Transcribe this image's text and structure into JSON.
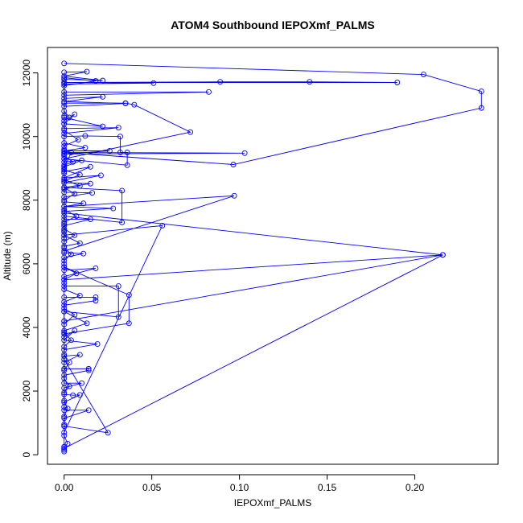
{
  "chart_data": {
    "type": "line",
    "title": "ATOM4 Southbound IEPOXmf_PALMS",
    "xlabel": "IEPOXmf_PALMS",
    "ylabel": "Altitude (m)",
    "xlim": [
      -0.0095,
      0.2475
    ],
    "ylim": [
      -300,
      12800
    ],
    "x_ticks": [
      0.0,
      0.05,
      0.1,
      0.15,
      0.2
    ],
    "x_tick_labels": [
      "0.00",
      "0.05",
      "0.10",
      "0.15",
      "0.20"
    ],
    "y_ticks": [
      0,
      2000,
      4000,
      6000,
      8000,
      10000,
      12000
    ],
    "y_tick_labels": [
      "0",
      "2000",
      "4000",
      "6000",
      "8000",
      "10000",
      "12000"
    ],
    "series_color": "#0000ff",
    "marker": "open-circle",
    "grid": false,
    "legend": "none",
    "series": [
      {
        "points": [
          [
            0.0,
            12300
          ],
          [
            0.205,
            11950
          ],
          [
            0.238,
            11420
          ],
          [
            0.238,
            10900
          ],
          [
            0.0965,
            9120
          ],
          [
            0.0,
            9500
          ],
          [
            0.103,
            9480
          ],
          [
            0.0,
            9450
          ],
          [
            0.0,
            9600
          ],
          [
            0.0,
            11700
          ],
          [
            0.19,
            11700
          ],
          [
            0.14,
            11720
          ],
          [
            0.089,
            11720
          ],
          [
            0.0,
            11700
          ],
          [
            0.051,
            11680
          ],
          [
            0.0,
            11650
          ],
          [
            0.0,
            11400
          ],
          [
            0.0825,
            11400
          ],
          [
            0.0,
            11300
          ],
          [
            0.0,
            11050
          ],
          [
            0.035,
            11050
          ],
          [
            0.04,
            11000
          ],
          [
            0.072,
            10140
          ],
          [
            0.0,
            9300
          ],
          [
            0.0,
            7800
          ],
          [
            0.097,
            8140
          ],
          [
            0.0,
            6400
          ],
          [
            0.0,
            7600
          ],
          [
            0.216,
            6280
          ],
          [
            0.0,
            5500
          ],
          [
            0.0,
            4200
          ],
          [
            0.216,
            6280
          ],
          [
            0.0,
            200
          ],
          [
            0.0,
            700
          ],
          [
            0.056,
            7200
          ],
          [
            0.0,
            6900
          ],
          [
            0.0,
            5900
          ],
          [
            0.037,
            5020
          ],
          [
            0.037,
            4130
          ],
          [
            0.0,
            3800
          ],
          [
            0.0,
            3000
          ],
          [
            0.025,
            690
          ],
          [
            0.0,
            900
          ],
          [
            0.0,
            1500
          ],
          [
            0.0,
            9000
          ],
          [
            0.004,
            9500
          ],
          [
            0.0,
            9550
          ]
        ]
      },
      {
        "points": [
          [
            0.0,
            12020
          ],
          [
            0.013,
            12040
          ],
          [
            0.0,
            11900
          ],
          [
            0.022,
            11760
          ],
          [
            0.0,
            11800
          ],
          [
            0.0,
            11600
          ],
          [
            0.018,
            11750
          ],
          [
            0.0,
            11850
          ],
          [
            0.0,
            11200
          ],
          [
            0.022,
            11250
          ],
          [
            0.0,
            11100
          ],
          [
            0.035,
            11040
          ],
          [
            0.0,
            10950
          ],
          [
            0.0,
            10650
          ],
          [
            0.0,
            10600
          ],
          [
            0.022,
            10320
          ],
          [
            0.0,
            10400
          ],
          [
            0.0,
            10250
          ],
          [
            0.031,
            10280
          ],
          [
            0.0,
            10100
          ],
          [
            0.0,
            10000
          ],
          [
            0.012,
            10020
          ],
          [
            0.032,
            10000
          ],
          [
            0.032,
            9500
          ],
          [
            0.036,
            9500
          ],
          [
            0.036,
            9100
          ],
          [
            0.0,
            9300
          ],
          [
            0.0,
            8900
          ],
          [
            0.015,
            9050
          ],
          [
            0.0,
            8700
          ],
          [
            0.021,
            8780
          ],
          [
            0.0,
            8550
          ],
          [
            0.015,
            8520
          ],
          [
            0.0,
            8400
          ],
          [
            0.033,
            8300
          ],
          [
            0.033,
            7300
          ],
          [
            0.0,
            7500
          ],
          [
            0.0,
            7250
          ],
          [
            0.0,
            7000
          ],
          [
            0.0,
            6800
          ]
        ]
      },
      {
        "points": [
          [
            0.0,
            9800
          ],
          [
            0.012,
            9650
          ],
          [
            0.0,
            9550
          ],
          [
            0.026,
            9550
          ],
          [
            0.0,
            9450
          ],
          [
            0.0,
            9200
          ],
          [
            0.01,
            9250
          ],
          [
            0.0,
            9050
          ],
          [
            0.0,
            8850
          ],
          [
            0.0,
            8650
          ],
          [
            0.009,
            8450
          ],
          [
            0.0,
            8350
          ],
          [
            0.0,
            8250
          ],
          [
            0.016,
            8230
          ],
          [
            0.0,
            8100
          ],
          [
            0.0,
            7950
          ],
          [
            0.011,
            7900
          ],
          [
            0.0,
            7800
          ],
          [
            0.028,
            7740
          ],
          [
            0.0,
            7650
          ],
          [
            0.0,
            7400
          ],
          [
            0.015,
            7400
          ],
          [
            0.0,
            7200
          ],
          [
            0.0,
            7050
          ],
          [
            0.0,
            6900
          ],
          [
            0.009,
            6650
          ],
          [
            0.0,
            6550
          ],
          [
            0.0,
            6350
          ],
          [
            0.011,
            6320
          ],
          [
            0.0,
            6200
          ],
          [
            0.0,
            6000
          ],
          [
            0.0,
            5800
          ],
          [
            0.018,
            5860
          ],
          [
            0.0,
            5600
          ],
          [
            0.0,
            5400
          ],
          [
            0.0,
            5300
          ],
          [
            0.031,
            5300
          ],
          [
            0.031,
            4330
          ],
          [
            0.0,
            4500
          ],
          [
            0.0,
            4200
          ]
        ]
      },
      {
        "points": [
          [
            0.0,
            4950
          ],
          [
            0.018,
            4950
          ],
          [
            0.018,
            4840
          ],
          [
            0.0,
            4700
          ],
          [
            0.0,
            4500
          ],
          [
            0.013,
            4130
          ],
          [
            0.0,
            3900
          ],
          [
            0.0,
            3700
          ],
          [
            0.006,
            3900
          ],
          [
            0.0,
            3600
          ],
          [
            0.019,
            3480
          ],
          [
            0.0,
            3300
          ],
          [
            0.0,
            3100
          ],
          [
            0.009,
            3140
          ],
          [
            0.0,
            2900
          ],
          [
            0.0,
            2700
          ],
          [
            0.014,
            2700
          ],
          [
            0.014,
            2650
          ],
          [
            0.0,
            2500
          ],
          [
            0.0,
            2250
          ],
          [
            0.01,
            2250
          ],
          [
            0.0,
            2100
          ],
          [
            0.0,
            1900
          ],
          [
            0.005,
            1870
          ],
          [
            0.009,
            1880
          ],
          [
            0.0,
            1650
          ],
          [
            0.0,
            1400
          ],
          [
            0.014,
            1400
          ],
          [
            0.0,
            1150
          ],
          [
            0.0,
            900
          ],
          [
            0.0,
            600
          ],
          [
            0.002,
            350
          ],
          [
            0.0,
            250
          ],
          [
            0.0,
            150
          ],
          [
            0.0,
            100
          ]
        ]
      },
      {
        "points": [
          [
            0.0,
            10800
          ],
          [
            0.003,
            10600
          ],
          [
            0.0,
            10500
          ],
          [
            0.006,
            10700
          ],
          [
            0.0,
            10400
          ],
          [
            0.0,
            10200
          ],
          [
            0.008,
            9900
          ],
          [
            0.0,
            9700
          ],
          [
            0.0,
            9400
          ],
          [
            0.005,
            9200
          ],
          [
            0.0,
            9100
          ],
          [
            0.0,
            8950
          ],
          [
            0.009,
            8800
          ],
          [
            0.0,
            8600
          ],
          [
            0.0,
            8400
          ],
          [
            0.006,
            8200
          ],
          [
            0.0,
            8000
          ],
          [
            0.0,
            7700
          ],
          [
            0.007,
            7500
          ],
          [
            0.0,
            7300
          ],
          [
            0.0,
            7100
          ],
          [
            0.006,
            6900
          ],
          [
            0.0,
            6700
          ],
          [
            0.0,
            6500
          ],
          [
            0.004,
            6300
          ],
          [
            0.0,
            6100
          ],
          [
            0.0,
            5900
          ],
          [
            0.007,
            5700
          ],
          [
            0.0,
            5500
          ],
          [
            0.0,
            5200
          ],
          [
            0.009,
            5000
          ],
          [
            0.0,
            4800
          ],
          [
            0.0,
            4600
          ],
          [
            0.006,
            4400
          ],
          [
            0.0,
            4100
          ],
          [
            0.0,
            3850
          ],
          [
            0.004,
            3600
          ],
          [
            0.0,
            3400
          ],
          [
            0.0,
            3150
          ],
          [
            0.003,
            2900
          ],
          [
            0.0,
            2650
          ],
          [
            0.0,
            2400
          ],
          [
            0.003,
            2150
          ],
          [
            0.0,
            1950
          ],
          [
            0.0,
            1700
          ],
          [
            0.002,
            1450
          ],
          [
            0.0,
            1200
          ],
          [
            0.0,
            950
          ]
        ]
      }
    ]
  }
}
